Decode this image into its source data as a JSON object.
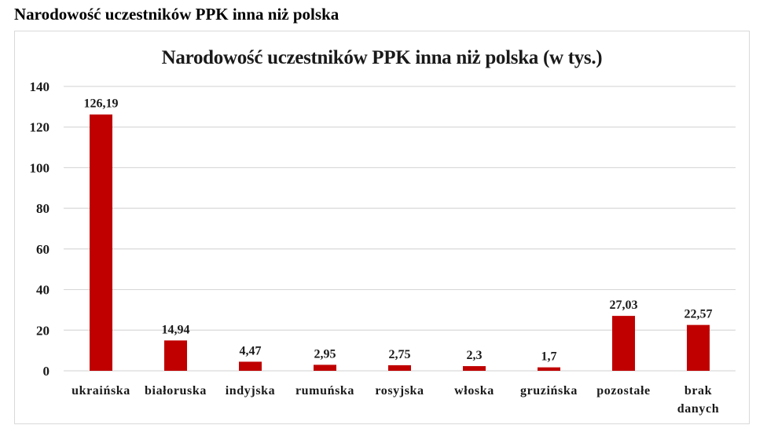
{
  "page": {
    "heading": "Narodowość uczestników PPK inna niż polska"
  },
  "colors": {
    "bar": "#c00000",
    "grid": "#d9d9d9",
    "border": "#d9d9d9"
  },
  "chart_data": {
    "type": "bar",
    "title": "Narodowość uczestników PPK inna niż polska (w tys.)",
    "xlabel": "",
    "ylabel": "",
    "ylim": [
      0,
      140
    ],
    "yticks": [
      0,
      20,
      40,
      60,
      80,
      100,
      120,
      140
    ],
    "grid": true,
    "legend": "none",
    "categories": [
      "ukraińska",
      "białoruska",
      "indyjska",
      "rumuńska",
      "rosyjska",
      "włoska",
      "gruzińska",
      "pozostałe",
      "brak danych"
    ],
    "category_lines": [
      [
        "ukraińska"
      ],
      [
        "białoruska"
      ],
      [
        "indyjska"
      ],
      [
        "rumuńska"
      ],
      [
        "rosyjska"
      ],
      [
        "włoska"
      ],
      [
        "gruzińska"
      ],
      [
        "pozostałe"
      ],
      [
        "brak",
        "danych"
      ]
    ],
    "values": [
      126.19,
      14.94,
      4.47,
      2.95,
      2.75,
      2.3,
      1.7,
      27.03,
      22.57
    ],
    "value_labels": [
      "126,19",
      "14,94",
      "4,47",
      "2,95",
      "2,75",
      "2,3",
      "1,7",
      "27,03",
      "22,57"
    ]
  }
}
